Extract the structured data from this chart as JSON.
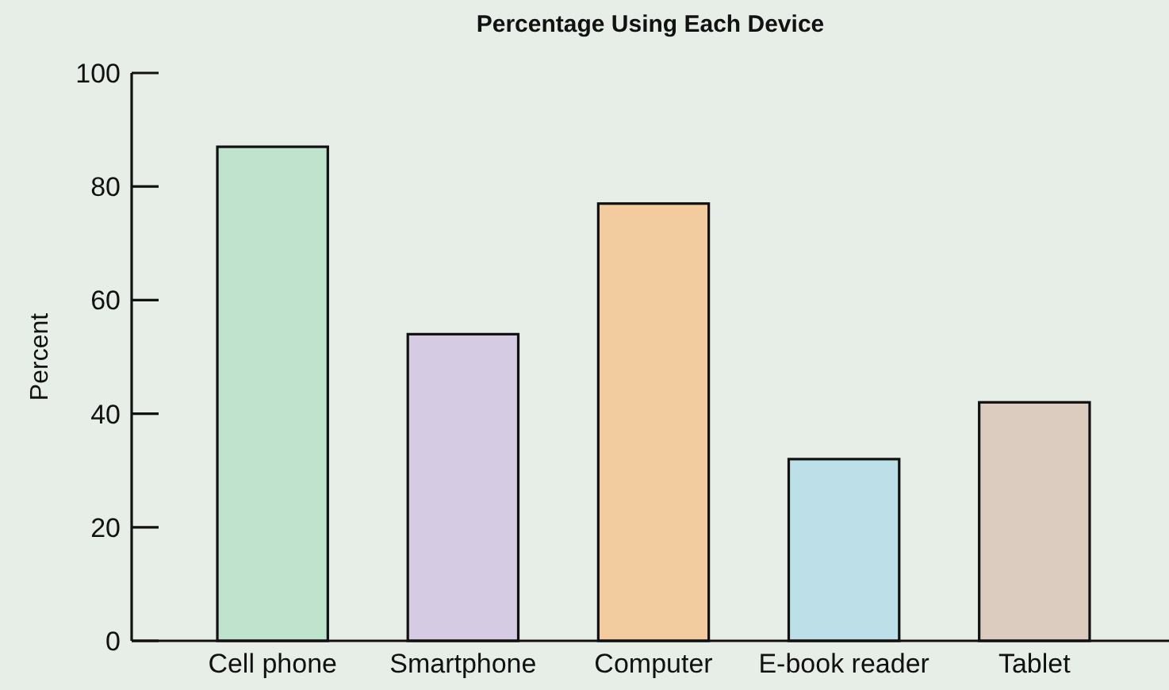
{
  "chart_data": {
    "type": "bar",
    "title": "Percentage Using Each Device",
    "ylabel": "Percent",
    "categories": [
      "Cell phone",
      "Smartphone",
      "Computer",
      "E-book reader",
      "Tablet"
    ],
    "values": [
      87,
      54,
      77,
      32,
      42
    ],
    "colors": [
      "#bfe3cc",
      "#d5cce3",
      "#f2cc9e",
      "#bddfe8",
      "#dccbbf"
    ],
    "ylim": [
      0,
      100
    ],
    "yticks": [
      0,
      20,
      40,
      60,
      80,
      100
    ],
    "grid": false
  }
}
